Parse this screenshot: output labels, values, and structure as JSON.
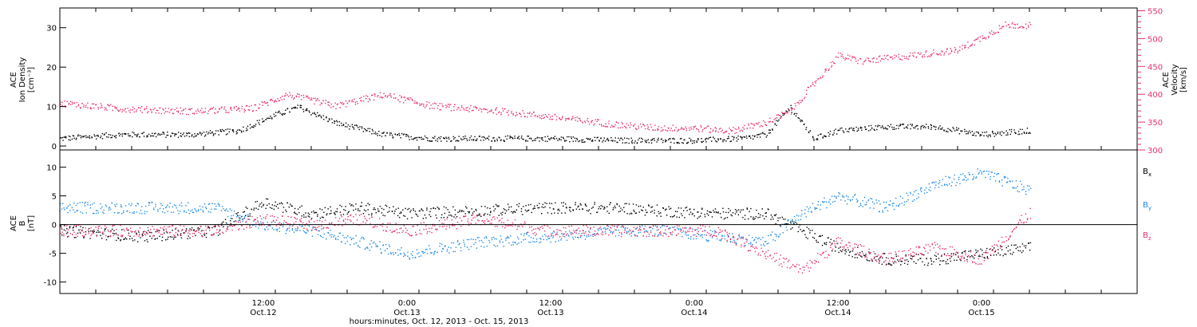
{
  "colors": {
    "black": "#000000",
    "red": "#e8336b",
    "blue": "#1f8ae6"
  },
  "time_axis": {
    "start": "2013-10-11T19:00",
    "end": "2013-10-15T13:00",
    "ticks": [
      {
        "time": "2013-10-12T12:00",
        "label1": "12:00",
        "label2": "Oct.12"
      },
      {
        "time": "2013-10-13T00:00",
        "label1": "0:00",
        "label2": "Oct.13"
      },
      {
        "time": "2013-10-13T12:00",
        "label1": "12:00",
        "label2": "Oct.13"
      },
      {
        "time": "2013-10-14T00:00",
        "label1": "0:00",
        "label2": "Oct.14"
      },
      {
        "time": "2013-10-14T12:00",
        "label1": "12:00",
        "label2": "Oct.14"
      },
      {
        "time": "2013-10-15T00:00",
        "label1": "0:00",
        "label2": "Oct.15"
      }
    ],
    "xlabel": "hours:minutes, Oct. 12, 2013 - Oct. 15, 2013"
  },
  "chart_data": [
    {
      "type": "scatter",
      "left_axis": {
        "label_lines": [
          "ACE",
          "Ion Density",
          "[cm⁻³]"
        ],
        "ylim": [
          -1,
          35
        ],
        "ticks": [
          0,
          10,
          20,
          30
        ]
      },
      "right_axis": {
        "label_lines": [
          "ACE",
          "Velocity",
          "[km/s]"
        ],
        "ylim": [
          300,
          555
        ],
        "ticks": [
          300,
          350,
          400,
          450,
          500,
          550
        ]
      },
      "series": [
        {
          "color": "black",
          "axis": "left",
          "x": [
            "2013-10-11T19:00",
            "2013-10-12T00:00",
            "2013-10-12T06:00",
            "2013-10-12T10:00",
            "2013-10-12T13:00",
            "2013-10-12T15:00",
            "2013-10-12T18:00",
            "2013-10-12T22:00",
            "2013-10-13T02:00",
            "2013-10-13T06:00",
            "2013-10-13T09:00",
            "2013-10-13T12:00",
            "2013-10-13T18:00",
            "2013-10-13T21:00",
            "2013-10-14T00:00",
            "2013-10-14T04:00",
            "2013-10-14T06:00",
            "2013-10-14T08:00",
            "2013-10-14T10:00",
            "2013-10-14T12:00",
            "2013-10-14T16:00",
            "2013-10-14T20:00",
            "2013-10-15T00:00",
            "2013-10-15T04:00"
          ],
          "y": [
            2,
            3,
            3,
            4,
            8,
            10,
            6,
            3,
            2,
            2,
            2,
            2,
            1.5,
            1.5,
            1.5,
            2,
            3,
            10,
            2,
            4,
            5,
            5,
            3,
            4
          ]
        },
        {
          "color": "red",
          "axis": "right",
          "x": [
            "2013-10-11T19:00",
            "2013-10-12T00:00",
            "2013-10-12T06:00",
            "2013-10-12T11:00",
            "2013-10-12T14:00",
            "2013-10-12T18:00",
            "2013-10-12T22:00",
            "2013-10-13T02:00",
            "2013-10-13T08:00",
            "2013-10-13T14:00",
            "2013-10-13T18:00",
            "2013-10-13T21:00",
            "2013-10-14T00:00",
            "2013-10-14T03:00",
            "2013-10-14T06:00",
            "2013-10-14T08:00",
            "2013-10-14T10:00",
            "2013-10-14T12:00",
            "2013-10-14T14:00",
            "2013-10-14T18:00",
            "2013-10-14T22:00",
            "2013-10-15T02:00",
            "2013-10-15T04:00"
          ],
          "y": [
            385,
            375,
            370,
            375,
            400,
            380,
            400,
            380,
            370,
            355,
            345,
            340,
            340,
            335,
            350,
            370,
            420,
            470,
            460,
            470,
            480,
            525,
            525
          ]
        }
      ]
    },
    {
      "type": "scatter",
      "left_axis": {
        "label_lines": [
          "ACE",
          "B",
          "[nT]"
        ],
        "ylim": [
          -12,
          13
        ],
        "ticks": [
          -10,
          -5,
          0,
          5,
          10
        ]
      },
      "legend": [
        "Bx",
        "By",
        "Bz"
      ],
      "series": [
        {
          "name": "Bx",
          "color": "black",
          "x": [
            "2013-10-11T19:00",
            "2013-10-12T02:00",
            "2013-10-12T08:00",
            "2013-10-12T12:00",
            "2013-10-12T16:00",
            "2013-10-12T20:00",
            "2013-10-13T00:00",
            "2013-10-13T06:00",
            "2013-10-13T12:00",
            "2013-10-13T18:00",
            "2013-10-13T21:00",
            "2013-10-14T02:00",
            "2013-10-14T06:00",
            "2013-10-14T09:00",
            "2013-10-14T12:00",
            "2013-10-14T16:00",
            "2013-10-14T20:00",
            "2013-10-15T00:00",
            "2013-10-15T04:00"
          ],
          "y": [
            -1,
            -2,
            -1,
            4,
            2,
            3,
            2,
            2.5,
            3,
            3,
            2.5,
            2,
            2,
            -1,
            -4,
            -6,
            -6,
            -5,
            -4
          ]
        },
        {
          "name": "By",
          "color": "blue",
          "x": [
            "2013-10-11T19:00",
            "2013-10-12T02:00",
            "2013-10-12T08:00",
            "2013-10-12T12:00",
            "2013-10-12T16:00",
            "2013-10-12T20:00",
            "2013-10-13T00:00",
            "2013-10-13T06:00",
            "2013-10-13T12:00",
            "2013-10-13T18:00",
            "2013-10-13T21:00",
            "2013-10-14T02:00",
            "2013-10-14T06:00",
            "2013-10-14T09:00",
            "2013-10-14T12:00",
            "2013-10-14T16:00",
            "2013-10-14T20:00",
            "2013-10-15T00:00",
            "2013-10-15T04:00"
          ],
          "y": [
            3,
            3,
            3,
            0,
            -1,
            -3,
            -5,
            -3,
            -2,
            -1,
            -1,
            -2,
            -3,
            2,
            5,
            3,
            7,
            9,
            6
          ]
        },
        {
          "name": "Bz",
          "color": "red",
          "x": [
            "2013-10-11T19:00",
            "2013-10-12T02:00",
            "2013-10-12T08:00",
            "2013-10-12T12:00",
            "2013-10-12T16:00",
            "2013-10-12T20:00",
            "2013-10-13T00:00",
            "2013-10-13T06:00",
            "2013-10-13T12:00",
            "2013-10-13T18:00",
            "2013-10-13T21:00",
            "2013-10-14T02:00",
            "2013-10-14T06:00",
            "2013-10-14T09:00",
            "2013-10-14T12:00",
            "2013-10-14T16:00",
            "2013-10-14T20:00",
            "2013-10-15T00:00",
            "2013-10-15T04:00"
          ],
          "y": [
            -1,
            -1,
            -1,
            1,
            0,
            1,
            -1,
            1,
            -1,
            -1,
            -1,
            -1,
            -5,
            -8,
            -3,
            -6,
            -4,
            -6,
            2
          ]
        }
      ]
    }
  ]
}
